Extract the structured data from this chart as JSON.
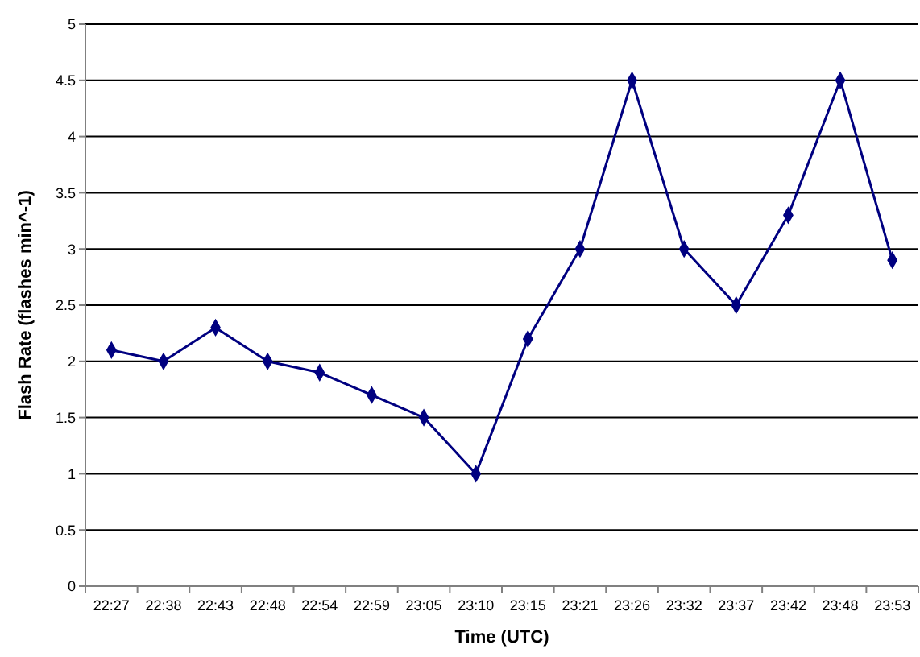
{
  "chart_data": {
    "type": "line",
    "xlabel": "Time (UTC)",
    "ylabel": "Flash Rate (flashes min^-1)",
    "categories": [
      "22:27",
      "22:38",
      "22:43",
      "22:48",
      "22:54",
      "22:59",
      "23:05",
      "23:10",
      "23:15",
      "23:21",
      "23:26",
      "23:32",
      "23:37",
      "23:42",
      "23:48",
      "23:53"
    ],
    "series": [
      {
        "color": "#000080",
        "values": [
          2.1,
          2.0,
          2.3,
          2.0,
          1.9,
          1.7,
          1.5,
          1.0,
          2.2,
          3.0,
          4.5,
          3.0,
          2.5,
          3.3,
          4.5,
          2.9
        ]
      }
    ],
    "ylim": [
      0,
      5
    ],
    "yticks": [
      0,
      0.5,
      1,
      1.5,
      2,
      2.5,
      3,
      3.5,
      4,
      4.5,
      5
    ],
    "grid": "y",
    "marker": "diamond",
    "line_style": "solid"
  }
}
